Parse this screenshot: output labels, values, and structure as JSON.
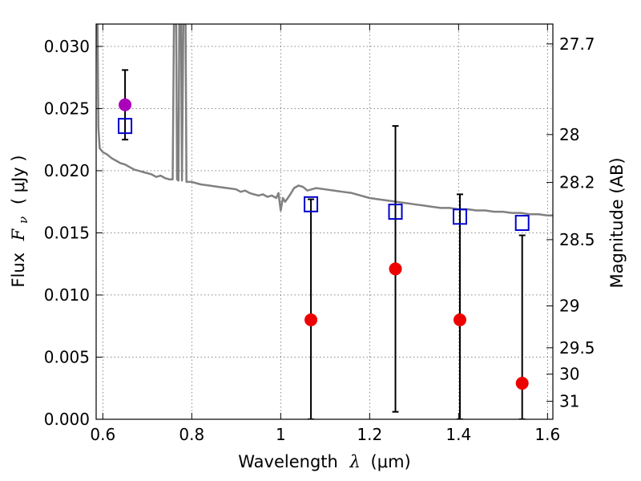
{
  "chart_data": {
    "type": "scatter",
    "xlabel_main": "Wavelength",
    "xlabel_symbol": "λ",
    "xlabel_unit": "(μm)",
    "ylabel_main": "Flux",
    "ylabel_symbol_F": "F",
    "ylabel_symbol_sub": "ν",
    "ylabel_unit": "( μJy )",
    "y2label": "Magnitude (AB)",
    "xlim": [
      0.585,
      1.612
    ],
    "ylim": [
      0.0,
      0.0318
    ],
    "grid": true,
    "x_ticks": [
      {
        "value": 0.6,
        "label": "0.6"
      },
      {
        "value": 0.8,
        "label": "0.8"
      },
      {
        "value": 1.0,
        "label": "1"
      },
      {
        "value": 1.2,
        "label": "1.2"
      },
      {
        "value": 1.4,
        "label": "1.4"
      },
      {
        "value": 1.6,
        "label": "1.6"
      }
    ],
    "y_ticks": [
      {
        "value": 0.0,
        "label": "0.000"
      },
      {
        "value": 0.005,
        "label": "0.005"
      },
      {
        "value": 0.01,
        "label": "0.010"
      },
      {
        "value": 0.015,
        "label": "0.015"
      },
      {
        "value": 0.02,
        "label": "0.020"
      },
      {
        "value": 0.025,
        "label": "0.025"
      },
      {
        "value": 0.03,
        "label": "0.030"
      }
    ],
    "y2_ticks": [
      {
        "value": 27.7,
        "label": "27.7"
      },
      {
        "value": 28.0,
        "label": "28"
      },
      {
        "value": 28.2,
        "label": "28.2"
      },
      {
        "value": 28.5,
        "label": "28.5"
      },
      {
        "value": 29.0,
        "label": "29"
      },
      {
        "value": 29.5,
        "label": "29.5"
      },
      {
        "value": 30.0,
        "label": "30"
      },
      {
        "value": 31.0,
        "label": "31"
      }
    ],
    "series": [
      {
        "kind": "line",
        "color": "#808080",
        "points": [
          [
            0.585,
            0.0318
          ],
          [
            0.588,
            0.0318
          ],
          [
            0.59,
            0.0235
          ],
          [
            0.593,
            0.0218
          ],
          [
            0.6,
            0.0215
          ],
          [
            0.61,
            0.0213
          ],
          [
            0.62,
            0.021
          ],
          [
            0.63,
            0.0208
          ],
          [
            0.64,
            0.0206
          ],
          [
            0.65,
            0.0205
          ],
          [
            0.66,
            0.0203
          ],
          [
            0.67,
            0.0201
          ],
          [
            0.68,
            0.02
          ],
          [
            0.69,
            0.0199
          ],
          [
            0.7,
            0.0198
          ],
          [
            0.71,
            0.0197
          ],
          [
            0.72,
            0.0195
          ],
          [
            0.73,
            0.0196
          ],
          [
            0.74,
            0.0194
          ],
          [
            0.75,
            0.0193
          ],
          [
            0.757,
            0.0193
          ],
          [
            0.76,
            0.0318
          ],
          [
            0.765,
            0.0318
          ],
          [
            0.767,
            0.0193
          ],
          [
            0.77,
            0.0192
          ],
          [
            0.772,
            0.0318
          ],
          [
            0.776,
            0.0318
          ],
          [
            0.778,
            0.0192
          ],
          [
            0.781,
            0.0318
          ],
          [
            0.786,
            0.0318
          ],
          [
            0.788,
            0.0191
          ],
          [
            0.8,
            0.0191
          ],
          [
            0.82,
            0.0189
          ],
          [
            0.84,
            0.0188
          ],
          [
            0.86,
            0.0187
          ],
          [
            0.88,
            0.0186
          ],
          [
            0.9,
            0.0185
          ],
          [
            0.91,
            0.0183
          ],
          [
            0.92,
            0.0184
          ],
          [
            0.93,
            0.0182
          ],
          [
            0.94,
            0.0181
          ],
          [
            0.95,
            0.018
          ],
          [
            0.96,
            0.0181
          ],
          [
            0.97,
            0.0179
          ],
          [
            0.98,
            0.018
          ],
          [
            0.99,
            0.0178
          ],
          [
            0.995,
            0.0182
          ],
          [
            1.0,
            0.0168
          ],
          [
            1.005,
            0.0178
          ],
          [
            1.01,
            0.0175
          ],
          [
            1.02,
            0.018
          ],
          [
            1.03,
            0.0186
          ],
          [
            1.04,
            0.0188
          ],
          [
            1.05,
            0.0187
          ],
          [
            1.06,
            0.0184
          ],
          [
            1.08,
            0.0186
          ],
          [
            1.1,
            0.0185
          ],
          [
            1.12,
            0.0184
          ],
          [
            1.14,
            0.0183
          ],
          [
            1.16,
            0.0182
          ],
          [
            1.18,
            0.018
          ],
          [
            1.2,
            0.0178
          ],
          [
            1.22,
            0.0177
          ],
          [
            1.24,
            0.0176
          ],
          [
            1.26,
            0.0175
          ],
          [
            1.28,
            0.0174
          ],
          [
            1.3,
            0.0173
          ],
          [
            1.32,
            0.0172
          ],
          [
            1.34,
            0.0171
          ],
          [
            1.36,
            0.017
          ],
          [
            1.38,
            0.017
          ],
          [
            1.4,
            0.0169
          ],
          [
            1.42,
            0.0169
          ],
          [
            1.44,
            0.0168
          ],
          [
            1.46,
            0.0168
          ],
          [
            1.48,
            0.0167
          ],
          [
            1.5,
            0.0167
          ],
          [
            1.52,
            0.0166
          ],
          [
            1.54,
            0.0166
          ],
          [
            1.56,
            0.0165
          ],
          [
            1.58,
            0.0165
          ],
          [
            1.6,
            0.0164
          ],
          [
            1.612,
            0.0164
          ]
        ]
      },
      {
        "kind": "errorbar",
        "color": "#000000",
        "bars": [
          {
            "x": 0.65,
            "low": 0.0225,
            "high": 0.0281
          },
          {
            "x": 1.068,
            "low": 0.0,
            "high": 0.0177
          },
          {
            "x": 1.258,
            "low": 0.0006,
            "high": 0.0236
          },
          {
            "x": 1.403,
            "low": 0.0,
            "high": 0.0181
          },
          {
            "x": 1.543,
            "low": 0.0,
            "high": 0.0148
          }
        ]
      },
      {
        "kind": "open-square",
        "color": "#0000cc",
        "points": [
          [
            0.65,
            0.0236
          ],
          [
            1.068,
            0.0173
          ],
          [
            1.258,
            0.0167
          ],
          [
            1.403,
            0.0163
          ],
          [
            1.543,
            0.0158
          ]
        ]
      },
      {
        "kind": "filled-circle",
        "color": "#ee0000",
        "points": [
          [
            1.068,
            0.008
          ],
          [
            1.258,
            0.0121
          ],
          [
            1.403,
            0.008
          ],
          [
            1.543,
            0.0029
          ]
        ]
      },
      {
        "kind": "filled-circle",
        "color": "#aa00bb",
        "points": [
          [
            0.65,
            0.0253
          ]
        ]
      }
    ]
  }
}
